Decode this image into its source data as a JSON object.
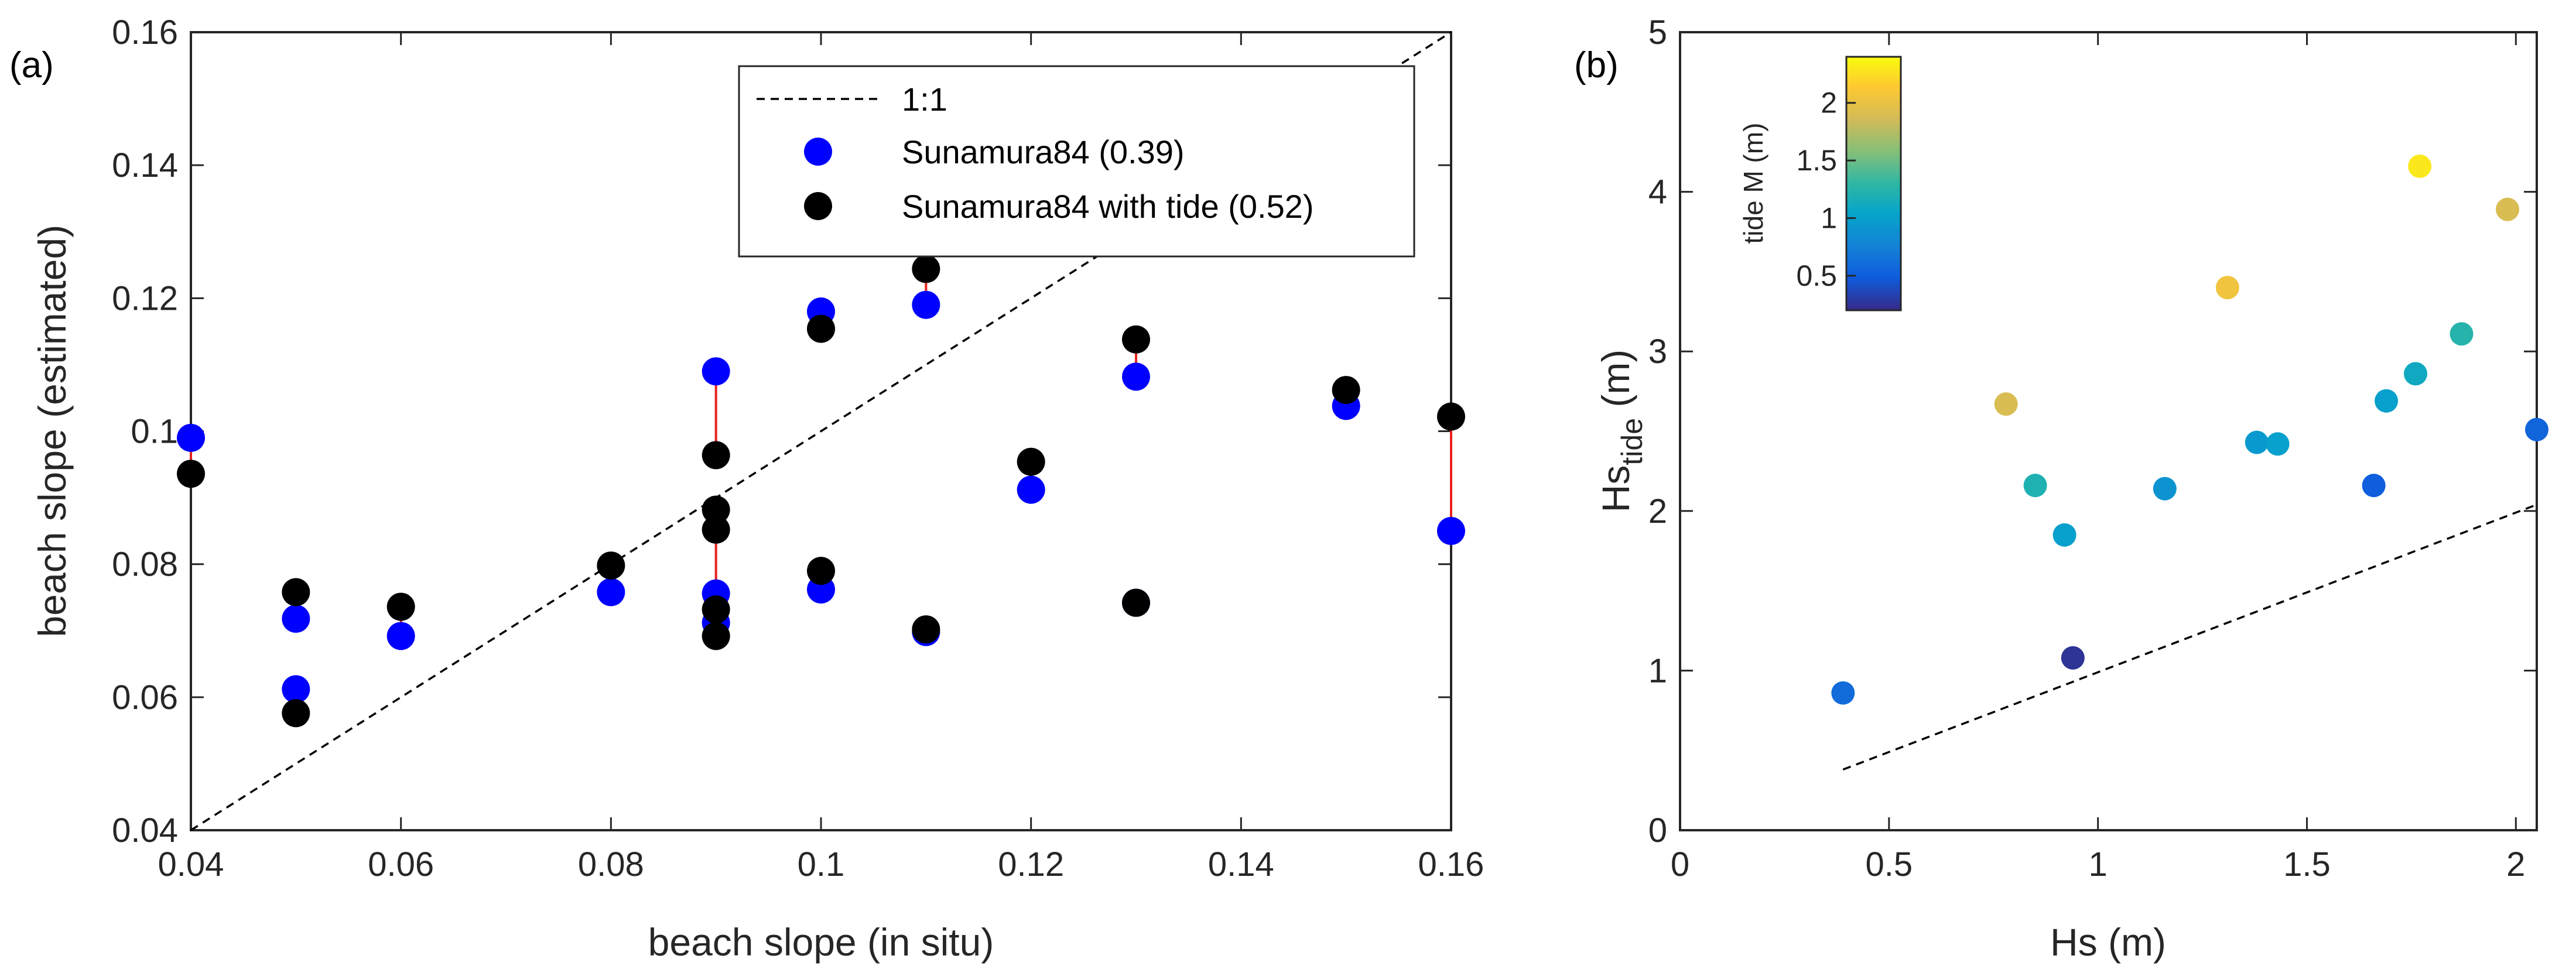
{
  "chart_data": [
    {
      "type": "scatter",
      "panel_label": "(a)",
      "xlabel": "beach slope (in situ)",
      "ylabel": "beach slope (estimated)",
      "xlim": [
        0.04,
        0.16
      ],
      "ylim": [
        0.04,
        0.16
      ],
      "xticks": [
        0.04,
        0.06,
        0.08,
        0.1,
        0.12,
        0.14,
        0.16
      ],
      "xtick_labels": [
        "0.04",
        "0.06",
        "0.08",
        "0.1",
        "0.12",
        "0.14",
        "0.16"
      ],
      "yticks": [
        0.04,
        0.06,
        0.08,
        0.1,
        0.12,
        0.14,
        0.16
      ],
      "ytick_labels": [
        "0.04",
        "0.06",
        "0.08",
        "0.1",
        "0.12",
        "0.14",
        "0.16"
      ],
      "legend_position": "top-right",
      "series": [
        {
          "name": "1:1",
          "style": "dashed-line",
          "color": "#000000",
          "x": [
            0.04,
            0.16
          ],
          "y": [
            0.04,
            0.16
          ]
        },
        {
          "name": "Sunamura84 (0.39)",
          "style": "marker",
          "color": "#0000ff",
          "x": [
            0.04,
            0.05,
            0.05,
            0.06,
            0.08,
            0.09,
            0.09,
            0.09,
            0.1,
            0.1,
            0.11,
            0.11,
            0.12,
            0.13,
            0.13,
            0.15,
            0.16
          ],
          "y": [
            0.099,
            0.0718,
            0.0612,
            0.0692,
            0.0758,
            0.109,
            0.0756,
            0.0712,
            0.118,
            0.0762,
            0.119,
            0.0698,
            0.0912,
            0.1082,
            0.0742,
            0.1038,
            0.085
          ]
        },
        {
          "name": "Sunamura84 with tide (0.52)",
          "style": "marker",
          "color": "#000000",
          "x": [
            0.04,
            0.05,
            0.05,
            0.06,
            0.08,
            0.09,
            0.09,
            0.09,
            0.09,
            0.09,
            0.1,
            0.1,
            0.11,
            0.11,
            0.12,
            0.13,
            0.13,
            0.15,
            0.16
          ],
          "y": [
            0.0936,
            0.0758,
            0.0576,
            0.0736,
            0.0798,
            0.0964,
            0.0882,
            0.0852,
            0.0732,
            0.0692,
            0.1154,
            0.079,
            0.1244,
            0.0702,
            0.0954,
            0.1138,
            0.0742,
            0.1062,
            0.1022
          ]
        }
      ],
      "connectors": [
        {
          "x": 0.04,
          "y1": 0.099,
          "y2": 0.0936
        },
        {
          "x": 0.05,
          "y1": 0.0718,
          "y2": 0.0758
        },
        {
          "x": 0.05,
          "y1": 0.0612,
          "y2": 0.0576
        },
        {
          "x": 0.06,
          "y1": 0.0692,
          "y2": 0.0736
        },
        {
          "x": 0.08,
          "y1": 0.0758,
          "y2": 0.0798
        },
        {
          "x": 0.09,
          "y1": 0.109,
          "y2": 0.0964
        },
        {
          "x": 0.09,
          "y1": 0.0756,
          "y2": 0.0882
        },
        {
          "x": 0.09,
          "y1": 0.0712,
          "y2": 0.0732
        },
        {
          "x": 0.1,
          "y1": 0.118,
          "y2": 0.1154
        },
        {
          "x": 0.1,
          "y1": 0.0762,
          "y2": 0.079
        },
        {
          "x": 0.11,
          "y1": 0.119,
          "y2": 0.1244
        },
        {
          "x": 0.11,
          "y1": 0.0698,
          "y2": 0.0702
        },
        {
          "x": 0.12,
          "y1": 0.0912,
          "y2": 0.0954
        },
        {
          "x": 0.13,
          "y1": 0.1082,
          "y2": 0.1138
        },
        {
          "x": 0.13,
          "y1": 0.0742,
          "y2": 0.0742
        },
        {
          "x": 0.15,
          "y1": 0.1038,
          "y2": 0.1062
        },
        {
          "x": 0.16,
          "y1": 0.085,
          "y2": 0.1022
        }
      ],
      "connector_color": "#e8201e"
    },
    {
      "type": "scatter",
      "panel_label": "(b)",
      "xlabel": "Hs (m)",
      "ylabel_main": "Hs",
      "ylabel_sub": "tide",
      "ylabel_unit": " (m)",
      "xlim": [
        0,
        2.05
      ],
      "ylim": [
        0,
        5
      ],
      "xticks": [
        0,
        0.5,
        1,
        1.5,
        2
      ],
      "xtick_labels": [
        "0",
        "0.5",
        "1",
        "1.5",
        "2"
      ],
      "yticks": [
        0,
        1,
        2,
        3,
        4,
        5
      ],
      "ytick_labels": [
        "0",
        "1",
        "2",
        "3",
        "4",
        "5"
      ],
      "reference_line": {
        "style": "dashed-line",
        "color": "#000000",
        "x": [
          0.39,
          2.05
        ],
        "y": [
          0.38,
          2.04
        ]
      },
      "points": {
        "x": [
          0.39,
          0.78,
          0.85,
          0.92,
          0.94,
          1.16,
          1.31,
          1.38,
          1.43,
          1.66,
          1.69,
          1.76,
          1.77,
          1.87,
          1.98,
          2.05
        ],
        "y": [
          0.86,
          2.67,
          2.16,
          1.85,
          1.08,
          2.14,
          3.4,
          2.43,
          2.42,
          2.16,
          2.69,
          2.86,
          4.16,
          3.11,
          3.89,
          2.51
        ],
        "tide": [
          0.6,
          1.9,
          1.2,
          1.0,
          0.25,
          0.9,
          2.05,
          0.95,
          1.0,
          0.5,
          1.0,
          1.1,
          2.3,
          1.25,
          1.9,
          0.55
        ]
      },
      "colorbar": {
        "label": "tide M (m)",
        "range": [
          0.2,
          2.4
        ],
        "ticks": [
          0.5,
          1,
          1.5,
          2
        ],
        "tick_labels": [
          "0.5",
          "1",
          "1.5",
          "2"
        ],
        "colormap": "parula"
      }
    }
  ]
}
